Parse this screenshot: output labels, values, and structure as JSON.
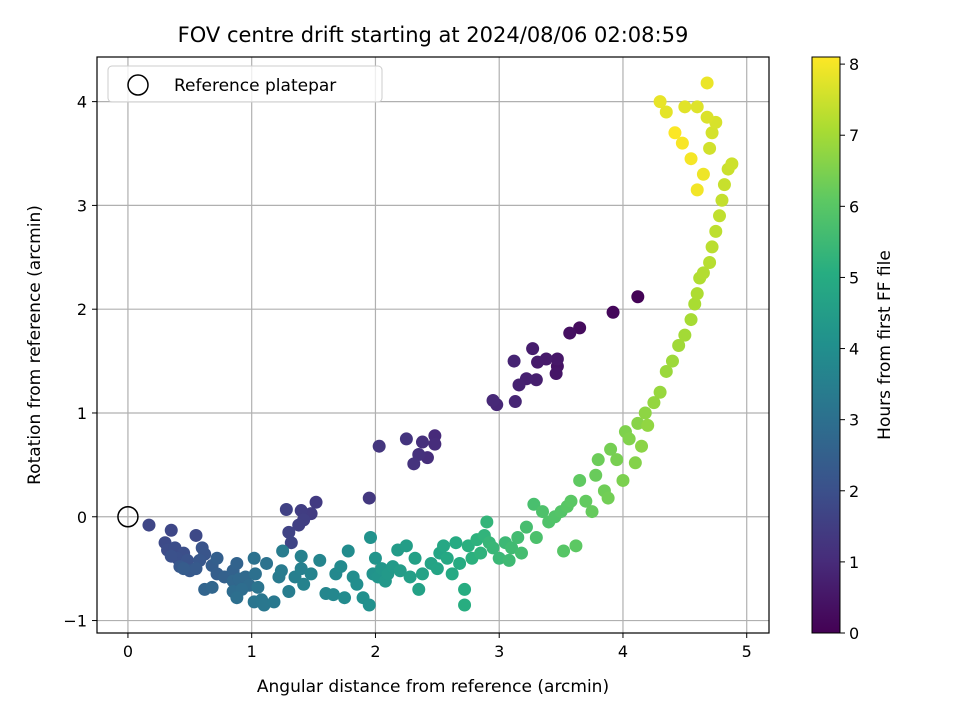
{
  "chart_data": {
    "type": "scatter",
    "title": "FOV centre drift starting at 2024/08/06 02:08:59",
    "xlabel": "Angular distance from reference (arcmin)",
    "ylabel": "Rotation from reference (arcmin)",
    "xlim": [
      -0.25,
      5.18
    ],
    "ylim": [
      -1.12,
      4.43
    ],
    "x_ticks": [
      0,
      1,
      2,
      3,
      4,
      5
    ],
    "y_ticks": [
      -1,
      0,
      1,
      2,
      3,
      4
    ],
    "grid": true,
    "legend": {
      "placement": "upper-left",
      "entries": [
        "Reference platepar"
      ]
    },
    "reference_point": {
      "x": 0,
      "y": 0,
      "label": "Reference platepar",
      "marker": "open-circle"
    },
    "colorbar": {
      "label": "Hours from first FF file",
      "range": [
        0,
        8.1
      ],
      "ticks": [
        0,
        1,
        2,
        3,
        4,
        5,
        6,
        7,
        8
      ],
      "colormap": "viridis",
      "stops": [
        "#440154",
        "#472c7a",
        "#3b518b",
        "#2c718e",
        "#21908d",
        "#27ad81",
        "#5cc863",
        "#aadc32",
        "#fde725"
      ]
    },
    "series": [
      {
        "points": [
          [
            4.12,
            2.12,
            0.05
          ],
          [
            3.92,
            1.97,
            0.15
          ],
          [
            3.65,
            1.82,
            0.25
          ],
          [
            3.57,
            1.77,
            0.35
          ],
          [
            3.47,
            1.45,
            0.42
          ],
          [
            3.46,
            1.38,
            0.48
          ],
          [
            3.47,
            1.52,
            0.52
          ],
          [
            3.38,
            1.52,
            0.58
          ],
          [
            3.31,
            1.49,
            0.62
          ],
          [
            3.27,
            1.62,
            0.66
          ],
          [
            3.3,
            1.32,
            0.7
          ],
          [
            3.22,
            1.33,
            0.74
          ],
          [
            3.16,
            1.27,
            0.78
          ],
          [
            3.12,
            1.5,
            0.82
          ],
          [
            3.13,
            1.11,
            0.86
          ],
          [
            2.98,
            1.08,
            0.9
          ],
          [
            2.95,
            1.12,
            0.94
          ],
          [
            2.48,
            0.78,
            1.0
          ],
          [
            2.48,
            0.7,
            1.05
          ],
          [
            2.42,
            0.57,
            1.08
          ],
          [
            2.38,
            0.72,
            1.12
          ],
          [
            2.35,
            0.6,
            1.16
          ],
          [
            2.31,
            0.51,
            1.2
          ],
          [
            2.25,
            0.75,
            1.24
          ],
          [
            2.03,
            0.68,
            1.28
          ],
          [
            1.95,
            0.18,
            1.34
          ],
          [
            1.52,
            0.14,
            1.4
          ],
          [
            1.48,
            0.03,
            1.44
          ],
          [
            1.4,
            0.06,
            1.48
          ],
          [
            1.42,
            -0.03,
            1.52
          ],
          [
            1.38,
            -0.08,
            1.56
          ],
          [
            1.28,
            0.07,
            1.6
          ],
          [
            1.3,
            -0.15,
            1.64
          ],
          [
            1.32,
            -0.25,
            1.68
          ],
          [
            0.17,
            -0.08,
            1.72
          ],
          [
            0.35,
            -0.13,
            1.76
          ],
          [
            0.55,
            -0.18,
            1.8
          ],
          [
            0.3,
            -0.25,
            1.84
          ],
          [
            0.32,
            -0.32,
            1.88
          ],
          [
            0.38,
            -0.3,
            1.92
          ],
          [
            0.45,
            -0.35,
            1.96
          ],
          [
            0.4,
            -0.4,
            2.0
          ],
          [
            0.35,
            -0.38,
            2.04
          ],
          [
            0.48,
            -0.42,
            2.08
          ],
          [
            0.6,
            -0.3,
            2.12
          ],
          [
            0.62,
            -0.36,
            2.16
          ],
          [
            0.58,
            -0.42,
            2.2
          ],
          [
            0.42,
            -0.48,
            2.24
          ],
          [
            0.5,
            -0.52,
            2.28
          ],
          [
            0.55,
            -0.5,
            2.32
          ],
          [
            0.45,
            -0.5,
            2.36
          ],
          [
            0.68,
            -0.47,
            2.4
          ],
          [
            0.72,
            -0.55,
            2.44
          ],
          [
            0.72,
            -0.4,
            2.48
          ],
          [
            0.78,
            -0.58,
            2.52
          ],
          [
            0.85,
            -0.52,
            2.56
          ],
          [
            0.88,
            -0.45,
            2.6
          ],
          [
            0.62,
            -0.7,
            2.64
          ],
          [
            0.68,
            -0.68,
            2.68
          ],
          [
            0.85,
            -0.62,
            2.72
          ],
          [
            0.9,
            -0.6,
            2.76
          ],
          [
            0.95,
            -0.58,
            2.8
          ],
          [
            0.98,
            -0.66,
            2.84
          ],
          [
            0.85,
            -0.72,
            2.88
          ],
          [
            0.92,
            -0.7,
            2.92
          ],
          [
            0.88,
            -0.78,
            2.96
          ],
          [
            1.03,
            -0.55,
            3.0
          ],
          [
            1.02,
            -0.4,
            3.04
          ],
          [
            1.12,
            -0.45,
            3.08
          ],
          [
            1.05,
            -0.68,
            3.12
          ],
          [
            1.02,
            -0.82,
            3.16
          ],
          [
            1.08,
            -0.8,
            3.2
          ],
          [
            1.1,
            -0.85,
            3.24
          ],
          [
            1.18,
            -0.82,
            3.28
          ],
          [
            1.22,
            -0.58,
            3.32
          ],
          [
            1.24,
            -0.52,
            3.36
          ],
          [
            1.25,
            -0.33,
            3.4
          ],
          [
            1.3,
            -0.72,
            3.44
          ],
          [
            1.35,
            -0.58,
            3.48
          ],
          [
            1.4,
            -0.5,
            3.52
          ],
          [
            1.4,
            -0.38,
            3.56
          ],
          [
            1.42,
            -0.65,
            3.6
          ],
          [
            1.48,
            -0.55,
            3.64
          ],
          [
            1.55,
            -0.42,
            3.68
          ],
          [
            1.6,
            -0.74,
            3.72
          ],
          [
            1.66,
            -0.75,
            3.76
          ],
          [
            1.68,
            -0.55,
            3.8
          ],
          [
            1.72,
            -0.48,
            3.84
          ],
          [
            1.75,
            -0.78,
            3.88
          ],
          [
            1.78,
            -0.33,
            3.92
          ],
          [
            1.82,
            -0.58,
            3.96
          ],
          [
            1.85,
            -0.65,
            4.0
          ],
          [
            1.9,
            -0.78,
            4.04
          ],
          [
            1.95,
            -0.85,
            4.08
          ],
          [
            1.96,
            -0.2,
            4.12
          ],
          [
            1.98,
            -0.55,
            4.16
          ],
          [
            2.0,
            -0.4,
            4.2
          ],
          [
            2.02,
            -0.58,
            4.24
          ],
          [
            2.05,
            -0.5,
            4.28
          ],
          [
            2.08,
            -0.62,
            4.32
          ],
          [
            2.1,
            -0.55,
            4.36
          ],
          [
            2.14,
            -0.48,
            4.4
          ],
          [
            2.18,
            -0.32,
            4.44
          ],
          [
            2.2,
            -0.52,
            4.48
          ],
          [
            2.25,
            -0.28,
            4.52
          ],
          [
            2.28,
            -0.58,
            4.56
          ],
          [
            2.32,
            -0.4,
            4.6
          ],
          [
            2.35,
            -0.7,
            4.64
          ],
          [
            2.38,
            -0.55,
            4.68
          ],
          [
            2.45,
            -0.45,
            4.72
          ],
          [
            2.5,
            -0.5,
            4.76
          ],
          [
            2.52,
            -0.35,
            4.8
          ],
          [
            2.55,
            -0.28,
            4.84
          ],
          [
            2.58,
            -0.4,
            4.88
          ],
          [
            2.62,
            -0.55,
            4.92
          ],
          [
            2.65,
            -0.25,
            4.96
          ],
          [
            2.68,
            -0.45,
            5.0
          ],
          [
            2.72,
            -0.7,
            5.04
          ],
          [
            2.72,
            -0.85,
            5.08
          ],
          [
            2.75,
            -0.28,
            5.12
          ],
          [
            2.78,
            -0.4,
            5.16
          ],
          [
            2.82,
            -0.22,
            5.2
          ],
          [
            2.85,
            -0.35,
            5.24
          ],
          [
            2.88,
            -0.18,
            5.28
          ],
          [
            2.9,
            -0.05,
            5.32
          ],
          [
            2.92,
            -0.25,
            5.36
          ],
          [
            2.95,
            -0.3,
            5.4
          ],
          [
            3.0,
            -0.4,
            5.44
          ],
          [
            3.05,
            -0.25,
            5.48
          ],
          [
            3.08,
            -0.42,
            5.52
          ],
          [
            3.1,
            -0.3,
            5.56
          ],
          [
            3.15,
            -0.2,
            5.6
          ],
          [
            3.18,
            -0.35,
            5.64
          ],
          [
            3.22,
            -0.1,
            5.68
          ],
          [
            3.28,
            0.12,
            5.72
          ],
          [
            3.3,
            -0.2,
            5.76
          ],
          [
            3.35,
            0.05,
            5.8
          ],
          [
            3.4,
            -0.05,
            5.84
          ],
          [
            3.45,
            0.0,
            5.88
          ],
          [
            3.5,
            0.05,
            5.92
          ],
          [
            3.52,
            -0.33,
            5.96
          ],
          [
            3.55,
            0.1,
            6.0
          ],
          [
            3.58,
            0.15,
            6.04
          ],
          [
            3.62,
            -0.28,
            6.08
          ],
          [
            3.65,
            0.35,
            6.12
          ],
          [
            3.7,
            0.15,
            6.16
          ],
          [
            3.75,
            0.05,
            6.2
          ],
          [
            3.78,
            0.4,
            6.24
          ],
          [
            3.8,
            0.55,
            6.28
          ],
          [
            3.85,
            0.25,
            6.32
          ],
          [
            3.88,
            0.18,
            6.36
          ],
          [
            3.9,
            0.65,
            6.4
          ],
          [
            3.95,
            0.55,
            6.44
          ],
          [
            4.0,
            0.35,
            6.48
          ],
          [
            4.02,
            0.82,
            6.52
          ],
          [
            4.05,
            0.75,
            6.56
          ],
          [
            4.1,
            0.52,
            6.6
          ],
          [
            4.12,
            0.9,
            6.64
          ],
          [
            4.15,
            0.68,
            6.68
          ],
          [
            4.18,
            1.0,
            6.72
          ],
          [
            4.2,
            0.88,
            6.76
          ],
          [
            4.25,
            1.1,
            6.8
          ],
          [
            4.3,
            1.2,
            6.84
          ],
          [
            4.35,
            1.4,
            6.88
          ],
          [
            4.4,
            1.5,
            6.92
          ],
          [
            4.45,
            1.65,
            6.96
          ],
          [
            4.5,
            1.75,
            7.0
          ],
          [
            4.55,
            1.9,
            7.04
          ],
          [
            4.58,
            2.05,
            7.08
          ],
          [
            4.6,
            2.15,
            7.12
          ],
          [
            4.62,
            2.3,
            7.16
          ],
          [
            4.65,
            2.35,
            7.2
          ],
          [
            4.7,
            2.45,
            7.24
          ],
          [
            4.72,
            2.6,
            7.28
          ],
          [
            4.75,
            2.75,
            7.32
          ],
          [
            4.78,
            2.9,
            7.36
          ],
          [
            4.8,
            3.05,
            7.4
          ],
          [
            4.82,
            3.2,
            7.44
          ],
          [
            4.85,
            3.35,
            7.48
          ],
          [
            4.88,
            3.4,
            7.52
          ],
          [
            4.7,
            3.55,
            7.56
          ],
          [
            4.72,
            3.7,
            7.6
          ],
          [
            4.75,
            3.8,
            7.64
          ],
          [
            4.68,
            3.85,
            7.68
          ],
          [
            4.6,
            3.95,
            7.72
          ],
          [
            4.5,
            3.95,
            7.76
          ],
          [
            4.35,
            3.9,
            7.8
          ],
          [
            4.3,
            4.0,
            7.84
          ],
          [
            4.68,
            4.18,
            7.88
          ],
          [
            4.65,
            3.3,
            7.92
          ],
          [
            4.6,
            3.15,
            7.96
          ],
          [
            4.55,
            3.45,
            8.0
          ],
          [
            4.48,
            3.6,
            8.04
          ],
          [
            4.42,
            3.7,
            8.08
          ]
        ]
      }
    ]
  }
}
